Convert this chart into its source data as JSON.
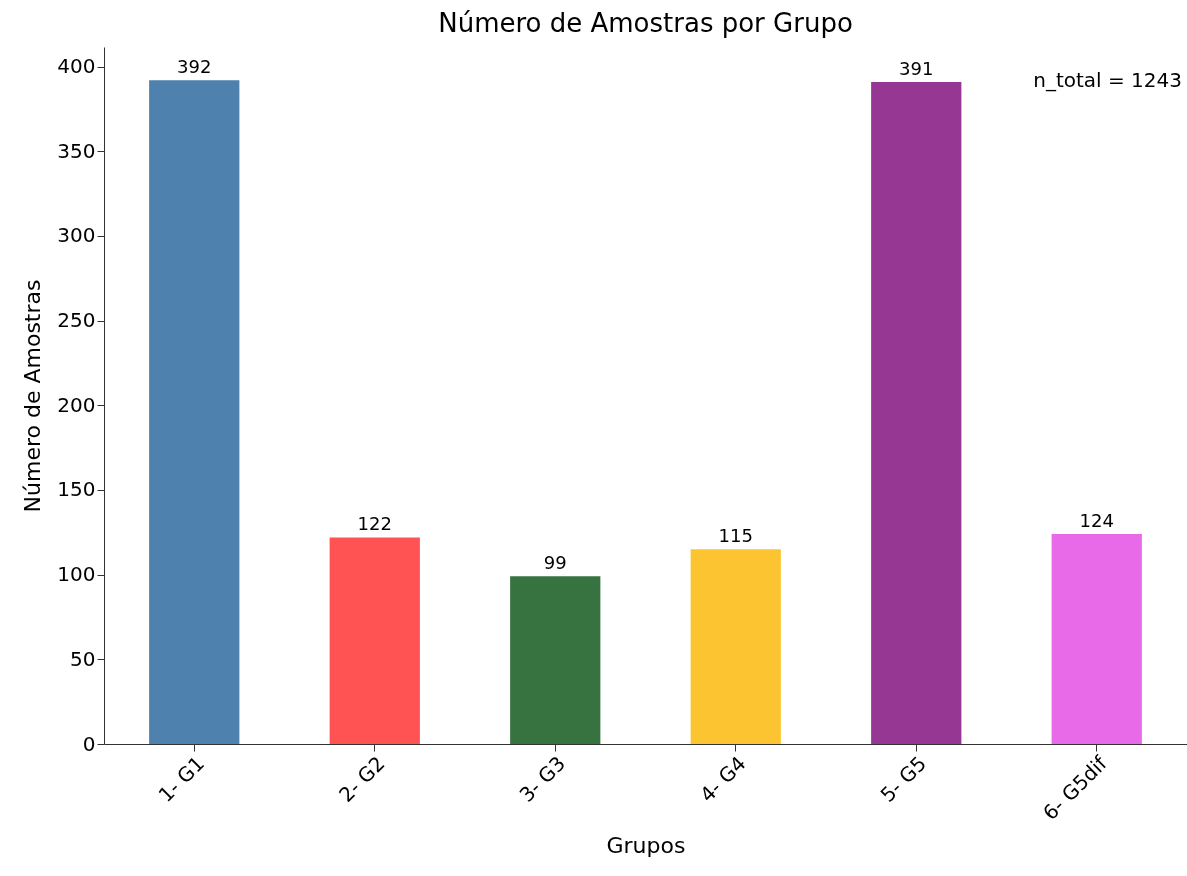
{
  "chart_data": {
    "type": "bar",
    "title": "Número de Amostras por Grupo",
    "xlabel": "Grupos",
    "ylabel": "Número de Amostras",
    "categories": [
      "1- G1",
      "2- G2",
      "3- G3",
      "4- G4",
      "5- G5",
      "6- G5dif"
    ],
    "values": [
      392,
      122,
      99,
      115,
      391,
      124
    ],
    "colors": [
      "#4e81ad",
      "#ff5252",
      "#377340",
      "#fdc432",
      "#963794",
      "#e86ae8"
    ],
    "ylim": [
      0,
      411.6
    ],
    "yticks": [
      0,
      50,
      100,
      150,
      200,
      250,
      300,
      350,
      400
    ],
    "grid": false,
    "data_labels": true,
    "annotations": [
      "n_total = 1243"
    ]
  }
}
